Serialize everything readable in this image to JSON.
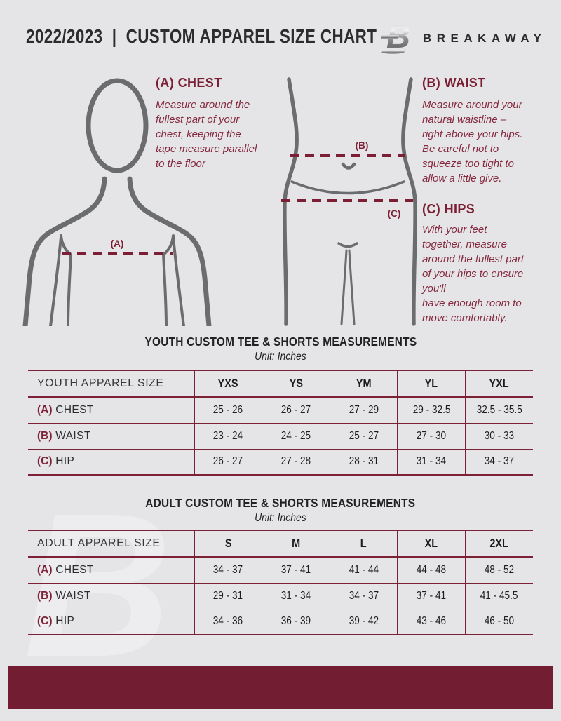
{
  "header": {
    "title": "2022/2023  |  CUSTOM APPAREL SIZE CHART",
    "brand": "BREAKAWAY"
  },
  "guide": {
    "chest": {
      "heading": "(A) CHEST",
      "marker": "(A)",
      "body": "Measure around the\nfullest part of your\nchest, keeping the\ntape measure parallel\nto the floor"
    },
    "waist": {
      "heading": "(B) WAIST",
      "marker": "(B)",
      "body": "Measure around your\nnatural waistline –\nright above your hips.\nBe careful not to\nsqueeze too tight to\nallow a little give."
    },
    "hips": {
      "heading": "(C) HIPS",
      "marker": "(C)",
      "body": "With your feet\ntogether, measure\naround the fullest part\nof your hips to ensure\nyou'll\nhave enough room to\nmove comfortably."
    }
  },
  "youth_table": {
    "title": "YOUTH CUSTOM TEE & SHORTS MEASUREMENTS",
    "unit": "Unit: Inches",
    "size_label": "YOUTH APPAREL SIZE",
    "sizes": [
      "YXS",
      "YS",
      "YM",
      "YL",
      "YXL"
    ],
    "rows": [
      {
        "marker": "(A)",
        "label": "CHEST",
        "values": [
          "25 - 26",
          "26 - 27",
          "27 - 29",
          "29 - 32.5",
          "32.5 - 35.5"
        ]
      },
      {
        "marker": "(B)",
        "label": "WAIST",
        "values": [
          "23 - 24",
          "24 - 25",
          "25 - 27",
          "27 - 30",
          "30 - 33"
        ]
      },
      {
        "marker": "(C)",
        "label": "HIP",
        "values": [
          "26 - 27",
          "27 - 28",
          "28 - 31",
          "31 - 34",
          "34 - 37"
        ]
      }
    ]
  },
  "adult_table": {
    "title": "ADULT CUSTOM TEE & SHORTS MEASUREMENTS",
    "unit": "Unit: Inches",
    "size_label": "ADULT APPAREL SIZE",
    "sizes": [
      "S",
      "M",
      "L",
      "XL",
      "2XL"
    ],
    "rows": [
      {
        "marker": "(A)",
        "label": "CHEST",
        "values": [
          "34 - 37",
          "37 - 41",
          "41 - 44",
          "44 - 48",
          "48 - 52"
        ]
      },
      {
        "marker": "(B)",
        "label": "WAIST",
        "values": [
          "29 - 31",
          "31 - 34",
          "34 - 37",
          "37 - 41",
          "41 - 45.5"
        ]
      },
      {
        "marker": "(C)",
        "label": "HIP",
        "values": [
          "34 - 36",
          "36 - 39",
          "39 - 42",
          "43 - 46",
          "46 - 50"
        ]
      }
    ]
  },
  "watermark": "B",
  "colors": {
    "background": "#e5e5e7",
    "maroon": "#7b2036",
    "footer": "#731d33",
    "figure_gray": "#6b6c6e",
    "text_dark": "#2c2c2e"
  }
}
